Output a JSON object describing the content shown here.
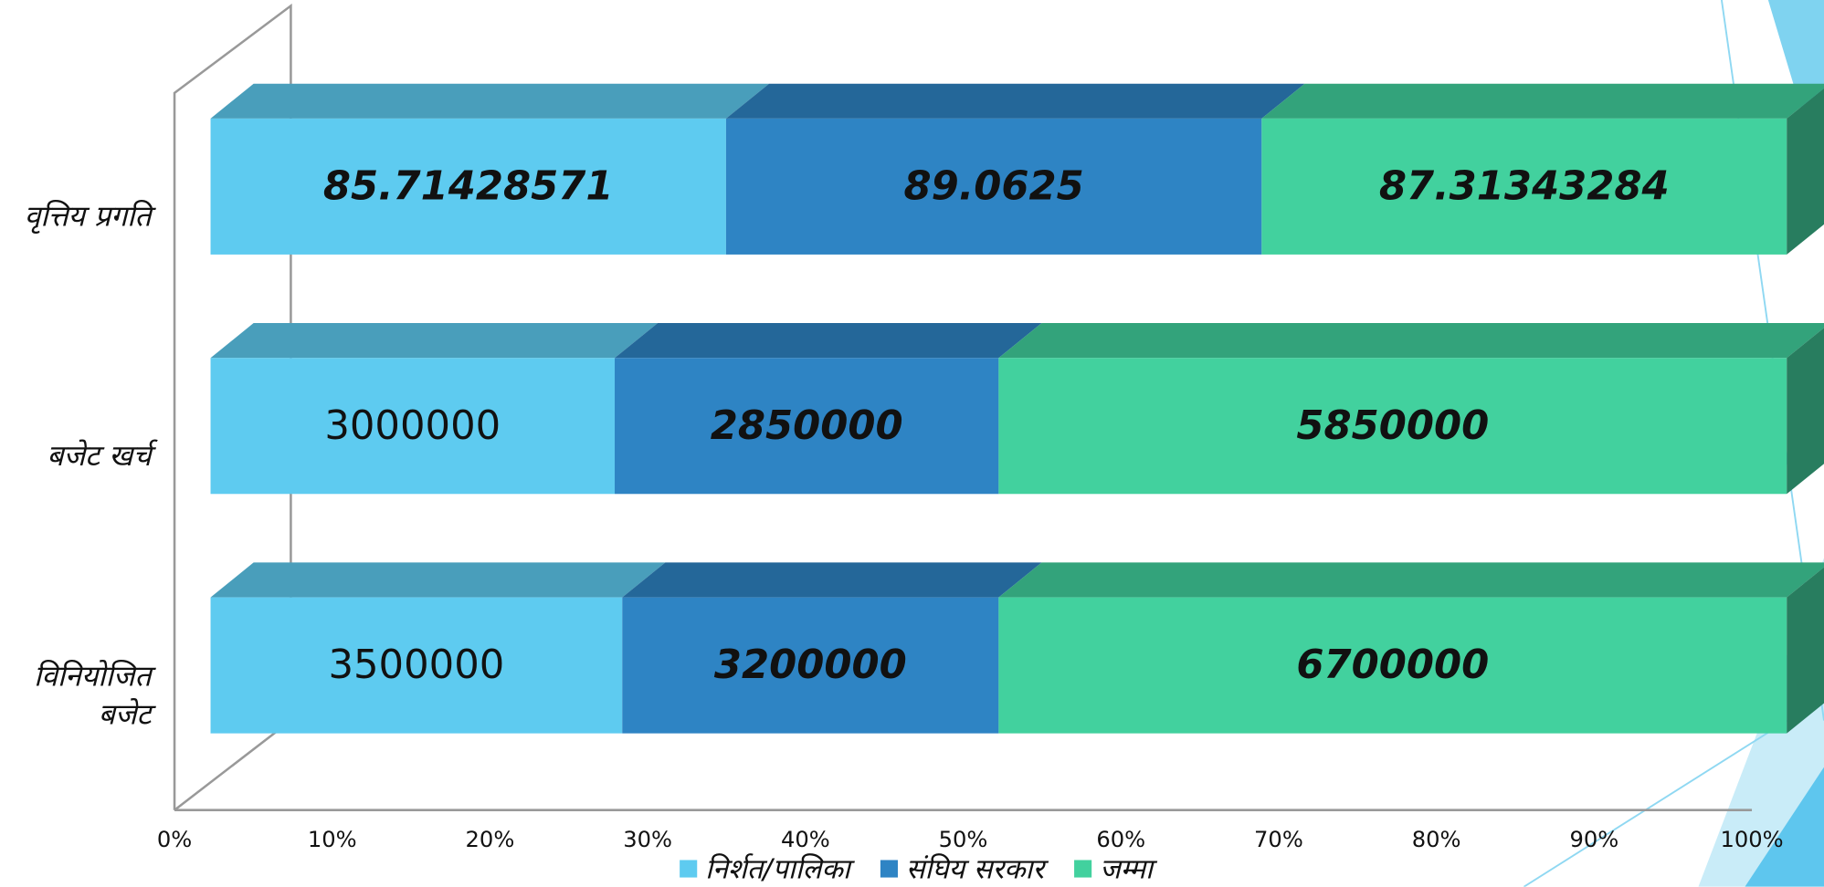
{
  "chart_data": {
    "type": "bar",
    "orientation": "horizontal",
    "stack": "percent",
    "categories": [
      "विनियोजित बजेट",
      "बजेट खर्च",
      "वृत्तिय प्रगति"
    ],
    "series": [
      {
        "name": "निर्शत/पालिका",
        "color": "#5ecbf0",
        "values": [
          3500000,
          3000000,
          85.71428571
        ]
      },
      {
        "name": "संघिय सरकार",
        "color": "#2e84c4",
        "values": [
          3200000,
          2850000,
          89.0625
        ]
      },
      {
        "name": "जम्मा",
        "color": "#42d19e",
        "values": [
          6700000,
          5850000,
          87.31343284
        ]
      }
    ],
    "xlim": [
      0,
      100
    ],
    "xticks": [
      {
        "value": 0,
        "label": "0%"
      },
      {
        "value": 10,
        "label": "10%"
      },
      {
        "value": 20,
        "label": "20%"
      },
      {
        "value": 30,
        "label": "30%"
      },
      {
        "value": 40,
        "label": "40%"
      },
      {
        "value": 50,
        "label": "50%"
      },
      {
        "value": 60,
        "label": "60%"
      },
      {
        "value": 70,
        "label": "70%"
      },
      {
        "value": 80,
        "label": "80%"
      },
      {
        "value": 90,
        "label": "90%"
      },
      {
        "value": 100,
        "label": "100%"
      }
    ],
    "legend": "bottom"
  }
}
